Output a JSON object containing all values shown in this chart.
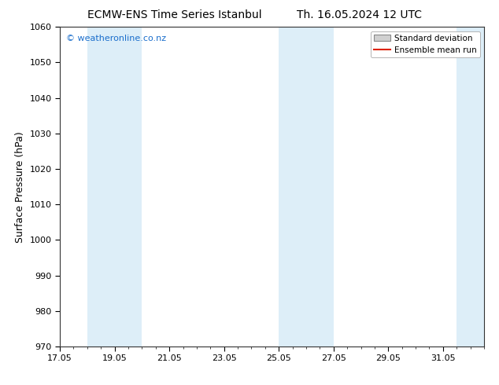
{
  "title_left": "ECMW-ENS Time Series Istanbul",
  "title_right": "Th. 16.05.2024 12 UTC",
  "ylabel": "Surface Pressure (hPa)",
  "ylim": [
    970,
    1060
  ],
  "yticks": [
    970,
    980,
    990,
    1000,
    1010,
    1020,
    1030,
    1040,
    1050,
    1060
  ],
  "x_min": 17.0,
  "x_max": 32.5,
  "xtick_labels": [
    "17.05",
    "19.05",
    "21.05",
    "23.05",
    "25.05",
    "27.05",
    "29.05",
    "31.05"
  ],
  "xtick_positions": [
    17,
    19,
    21,
    23,
    25,
    27,
    29,
    31
  ],
  "shaded_bands": [
    {
      "x_start": 18.0,
      "x_end": 20.0,
      "color": "#ddeef8"
    },
    {
      "x_start": 25.0,
      "x_end": 27.0,
      "color": "#ddeef8"
    },
    {
      "x_start": 31.5,
      "x_end": 32.5,
      "color": "#ddeef8"
    }
  ],
  "watermark": "© weatheronline.co.nz",
  "watermark_color": "#1a6ecc",
  "legend_std_dev_label": "Standard deviation",
  "legend_ensemble_label": "Ensemble mean run",
  "legend_std_dev_facecolor": "#d0d0d0",
  "legend_std_dev_edgecolor": "#888888",
  "legend_ensemble_color": "#dd2200",
  "bg_color": "#ffffff",
  "plot_bg_color": "#ffffff",
  "spine_color": "#333333",
  "title_fontsize": 10,
  "ylabel_fontsize": 9,
  "tick_fontsize": 8,
  "watermark_fontsize": 8,
  "legend_fontsize": 7.5
}
